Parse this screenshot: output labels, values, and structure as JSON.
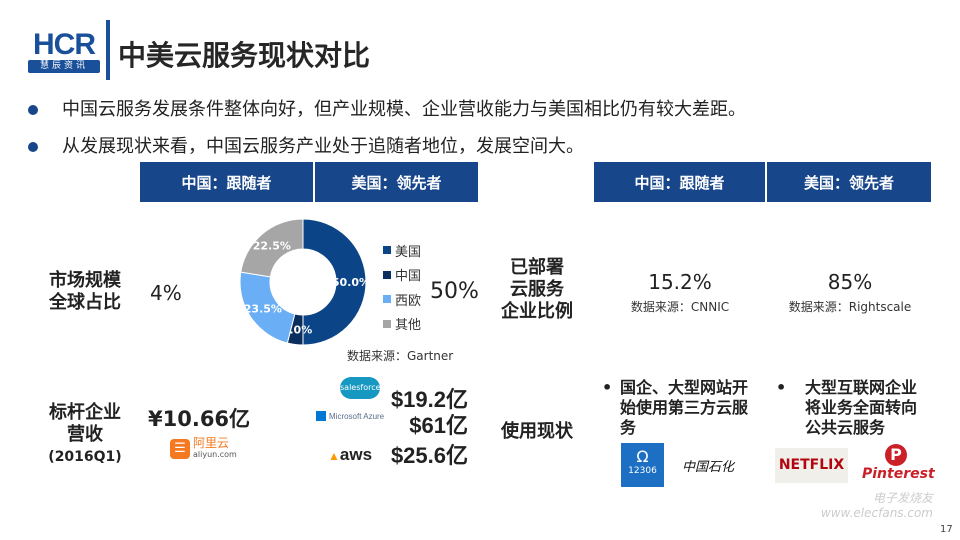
{
  "logo": {
    "brand": "HCR",
    "sub": "慧辰资讯"
  },
  "title": "中美云服务现状对比",
  "bullets": [
    "中国云服务发展条件整体向好，但产业规模、企业营收能力与美国相比仍有较大差距。",
    "从发展现状来看，中国云服务产业处于追随者地位，发展空间大。"
  ],
  "left_headers": [
    "中国：跟随者",
    "美国：领先者"
  ],
  "right_headers": [
    "中国：跟随者",
    "美国：领先者"
  ],
  "market": {
    "label": [
      "市场规模",
      "全球占比"
    ],
    "china": "4%",
    "us": "50%",
    "source": "数据来源：Gartner"
  },
  "chart_data": {
    "type": "pie",
    "donut": true,
    "categories": [
      "美国",
      "中国",
      "西欧",
      "其他"
    ],
    "values": [
      50.0,
      4.0,
      23.5,
      22.5
    ],
    "data_labels": [
      "50.0%",
      "4.0%",
      "23.5%",
      "22.5%"
    ],
    "colors": [
      "#0b4587",
      "#0a2f5e",
      "#6aaef5",
      "#a6a6a6"
    ],
    "legend": "right"
  },
  "revenue": {
    "label": [
      "标杆企业",
      "营收",
      "(2016Q1)"
    ],
    "china": "¥10.66亿",
    "china_logo": {
      "cn": "阿里云",
      "en": "aliyun.com"
    },
    "us": [
      {
        "logo": "salesforce",
        "value": "$19.2亿"
      },
      {
        "logo": "Microsoft Azure",
        "value": "$61亿"
      },
      {
        "logo": "aws",
        "value": "$25.6亿"
      }
    ]
  },
  "deploy": {
    "label": [
      "已部署",
      "云服务",
      "企业比例"
    ],
    "china": "15.2%",
    "china_source": "数据来源：CNNIC",
    "us": "85%",
    "us_source": "数据来源：Rightscale"
  },
  "usage": {
    "label": "使用现状",
    "china": "国企、大型网站开始使用第三方云服务",
    "us": "大型互联网企业将业务全面转向公共云服务",
    "china_logos": [
      "12306",
      "中国石化"
    ],
    "us_logos": [
      "NETFLIX",
      "Pinterest"
    ]
  },
  "watermark": "电子发烧友 www.elecfans.com",
  "page_number": "17"
}
